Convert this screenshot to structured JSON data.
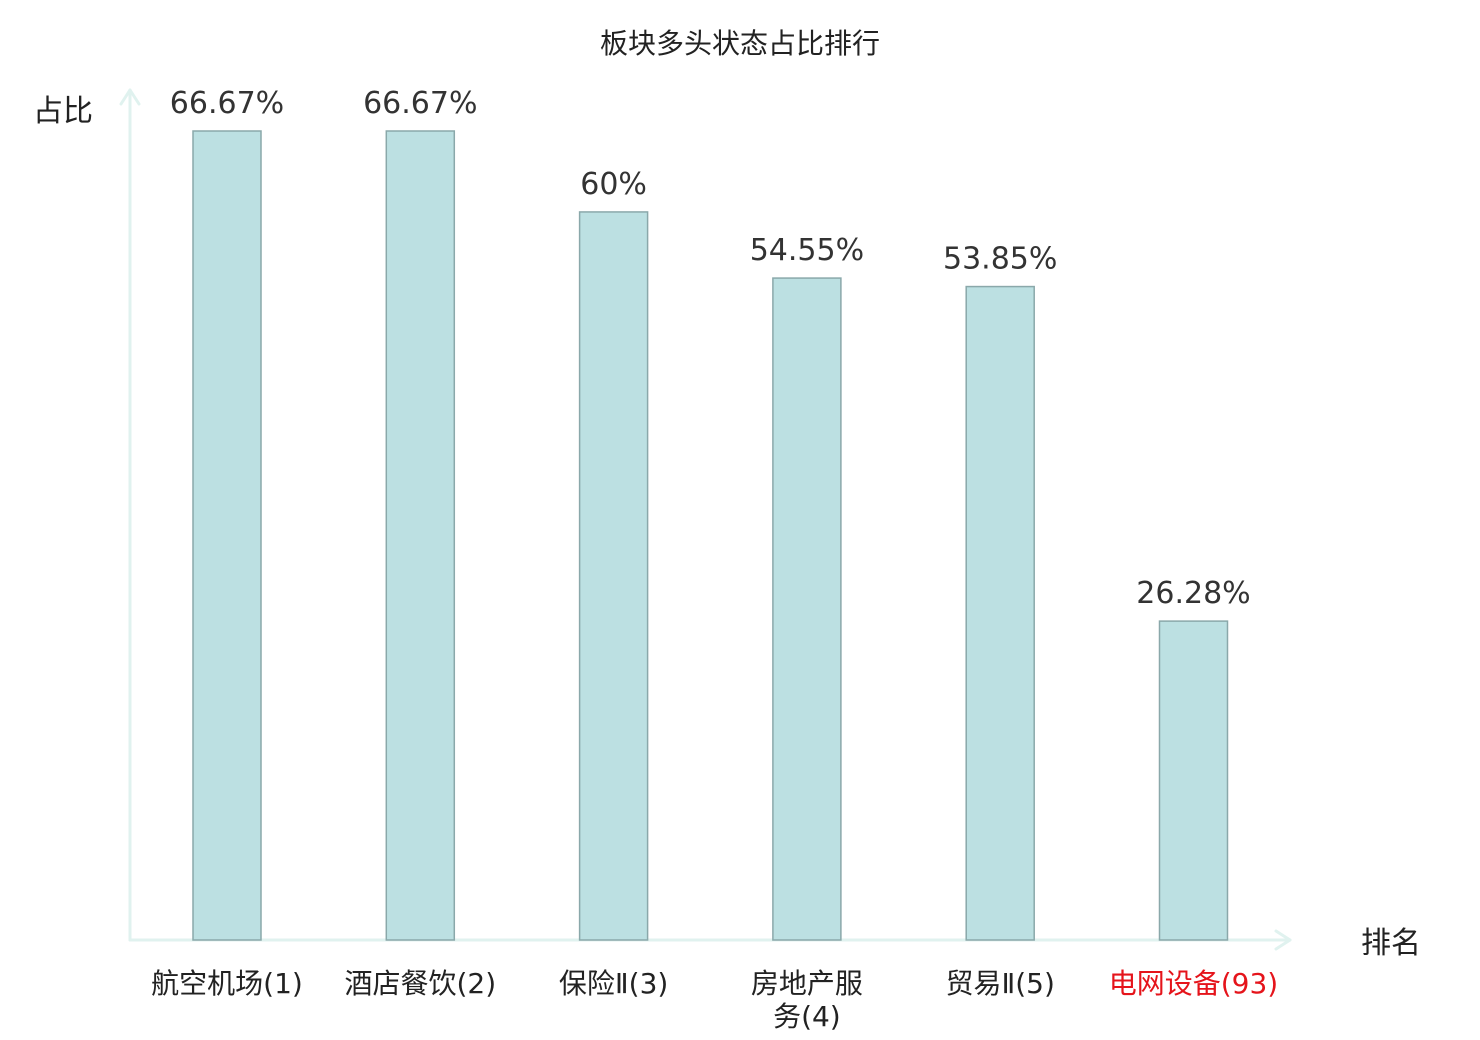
{
  "chart_data": {
    "type": "bar",
    "title": "板块多头状态占比排行",
    "ylabel": "占比",
    "xlabel": "排名",
    "ylim": [
      0,
      70
    ],
    "grid": false,
    "categories": [
      [
        "航空机场(1)"
      ],
      [
        "酒店餐饮(2)"
      ],
      [
        "保险Ⅱ(3)"
      ],
      [
        "房地产服",
        "务(4)"
      ],
      [
        "贸易Ⅱ(5)"
      ],
      [
        "电网设备(93)"
      ]
    ],
    "values": [
      66.67,
      66.67,
      60,
      54.55,
      53.85,
      26.28
    ],
    "value_labels": [
      "66.67%",
      "66.67%",
      "60%",
      "54.55%",
      "53.85%",
      "26.28%"
    ],
    "highlight_index": 5,
    "colors": {
      "bar_fill": "#bce0e2",
      "bar_stroke": "#8aa8aa",
      "axis": "#e0f2ef",
      "highlight_text": "#e5141b"
    }
  }
}
